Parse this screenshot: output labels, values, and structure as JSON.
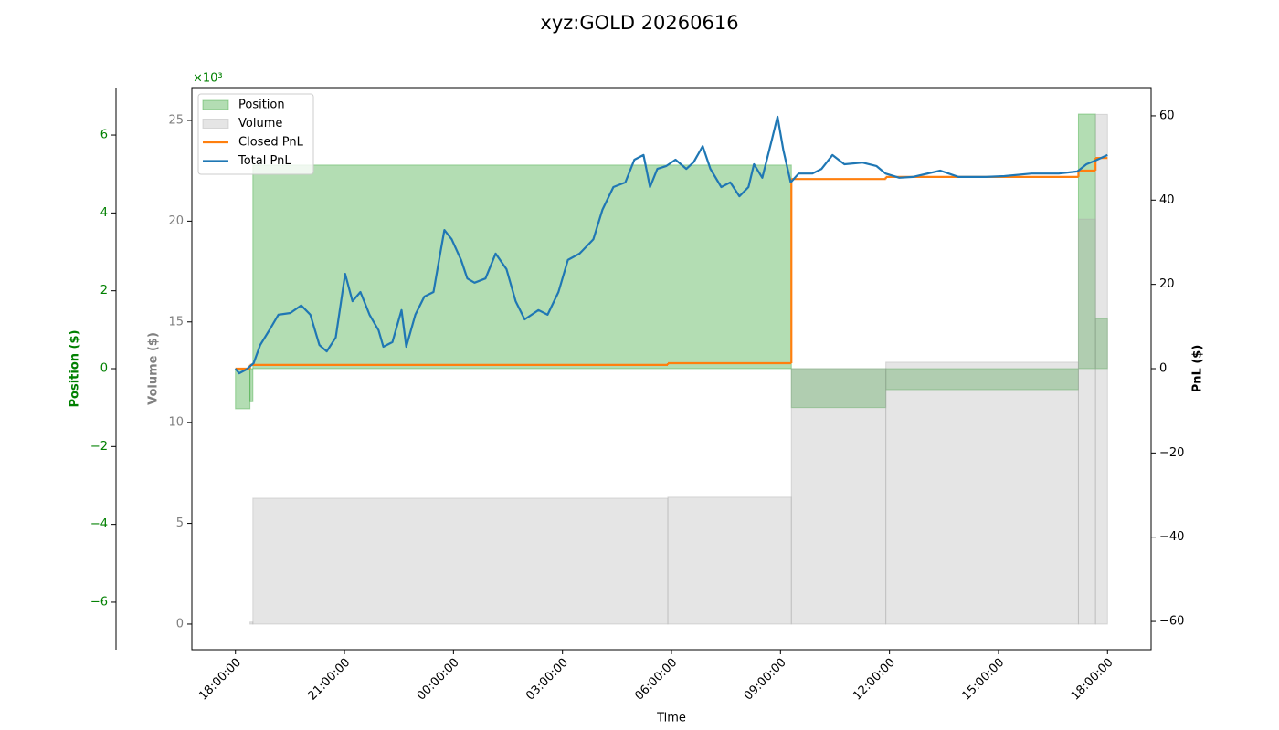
{
  "chart_data": {
    "type": "combo",
    "title": "xyz:GOLD 20260616",
    "xlabel": "Time",
    "ylabel": "Position ($)",
    "y2label": "PnL ($)",
    "y3label": "Volume ($)",
    "y_offset_label": "×10³",
    "xlim": [
      -1.2,
      25.2
    ],
    "xticks": [
      {
        "value": 0,
        "label": "18:00:00"
      },
      {
        "value": 3,
        "label": "21:00:00"
      },
      {
        "value": 6,
        "label": "00:00:00"
      },
      {
        "value": 9,
        "label": "03:00:00"
      },
      {
        "value": 12,
        "label": "06:00:00"
      },
      {
        "value": 15,
        "label": "09:00:00"
      },
      {
        "value": 18,
        "label": "12:00:00"
      },
      {
        "value": 21,
        "label": "15:00:00"
      },
      {
        "value": 24,
        "label": "18:00:00"
      }
    ],
    "ylim": [
      -7.22,
      7.22
    ],
    "yticks": [
      {
        "value": -6,
        "label": "−6"
      },
      {
        "value": -4,
        "label": "−4"
      },
      {
        "value": -2,
        "label": "−2"
      },
      0,
      2,
      4,
      6
    ],
    "y2lim": [
      -66.7,
      66.7
    ],
    "y2ticks": [
      {
        "value": -60,
        "label": "−60"
      },
      {
        "value": -40,
        "label": "−40"
      },
      {
        "value": -20,
        "label": "−20"
      },
      0,
      20,
      40,
      60
    ],
    "y3lim": [
      -1.27,
      26.63
    ],
    "y3ticks": [
      0,
      5,
      10,
      15,
      20,
      25
    ],
    "ycolor": "#008000",
    "y3color": "#808080",
    "legend": "upper left",
    "series": [
      {
        "name": "Position",
        "type": "area-step",
        "axis": "y",
        "color": "#2ca02c",
        "x_edges": [
          0,
          0.4,
          0.48,
          15.3,
          17.9,
          23.2,
          23.67,
          24
        ],
        "values": [
          -1.03,
          -0.85,
          5.23,
          -1.0,
          -0.54,
          6.54,
          1.29
        ]
      },
      {
        "name": "Volume",
        "type": "area-step",
        "axis": "y3",
        "color": "#a9a9a9",
        "x_edges": [
          0,
          0.4,
          0.48,
          11.9,
          15.3,
          17.9,
          23.2,
          23.67,
          24
        ],
        "values": [
          0,
          0.1,
          6.25,
          6.3,
          12.68,
          13.0,
          20.1,
          25.3
        ]
      },
      {
        "name": "Closed PnL",
        "type": "line-step",
        "axis": "y2",
        "color": "#ff7f0e",
        "x_edges": [
          0,
          0.4,
          11.9,
          15.3,
          17.9,
          23.2,
          23.67,
          24
        ],
        "values": [
          0,
          0.9,
          1.3,
          45,
          45.5,
          47,
          50
        ]
      },
      {
        "name": "Total PnL",
        "type": "line",
        "axis": "y2",
        "color": "#1f77b4",
        "x": [
          0,
          0.1,
          0.3,
          0.5,
          0.68,
          0.93,
          1.18,
          1.51,
          1.81,
          2.06,
          2.31,
          2.51,
          2.76,
          3.02,
          3.22,
          3.44,
          3.69,
          3.94,
          4.07,
          4.32,
          4.57,
          4.7,
          4.95,
          5.2,
          5.45,
          5.58,
          5.75,
          5.95,
          6.21,
          6.38,
          6.58,
          6.88,
          7.16,
          7.46,
          7.71,
          7.96,
          8.34,
          8.59,
          8.89,
          9.15,
          9.47,
          9.85,
          10.1,
          10.4,
          10.73,
          10.98,
          11.23,
          11.41,
          11.61,
          11.86,
          12.11,
          12.41,
          12.61,
          12.86,
          13.07,
          13.37,
          13.62,
          13.87,
          14.12,
          14.27,
          14.5,
          14.75,
          14.92,
          15.08,
          15.28,
          15.5,
          15.88,
          16.13,
          16.43,
          16.76,
          17.26,
          17.64,
          17.89,
          18.27,
          18.64,
          19.4,
          19.9,
          20.65,
          21.16,
          21.91,
          22.66,
          23.17,
          23.42,
          23.67,
          24
        ],
        "values": [
          0,
          -1.1,
          -0.2,
          1.3,
          5.6,
          9.1,
          12.8,
          13.2,
          15.0,
          12.8,
          5.6,
          4.1,
          7.4,
          22.5,
          16.0,
          18.2,
          12.8,
          9.1,
          5.2,
          6.3,
          13.9,
          5.2,
          12.8,
          17.1,
          18.2,
          24.7,
          32.9,
          30.7,
          25.8,
          21.4,
          20.4,
          21.4,
          27.3,
          23.6,
          16.0,
          11.7,
          13.9,
          12.8,
          18.2,
          25.8,
          27.3,
          30.7,
          37.7,
          43.1,
          44.2,
          49.6,
          50.7,
          43.1,
          47.4,
          48.1,
          49.6,
          47.4,
          49.0,
          52.8,
          47.4,
          43.1,
          44.2,
          40.9,
          43.1,
          48.5,
          45.3,
          53.9,
          59.8,
          51.8,
          44.2,
          46.3,
          46.3,
          47.4,
          50.7,
          48.5,
          48.9,
          48.1,
          46.3,
          45.3,
          45.5,
          47.0,
          45.5,
          45.5,
          45.7,
          46.3,
          46.3,
          46.8,
          48.5,
          49.4,
          50.7
        ]
      }
    ]
  }
}
